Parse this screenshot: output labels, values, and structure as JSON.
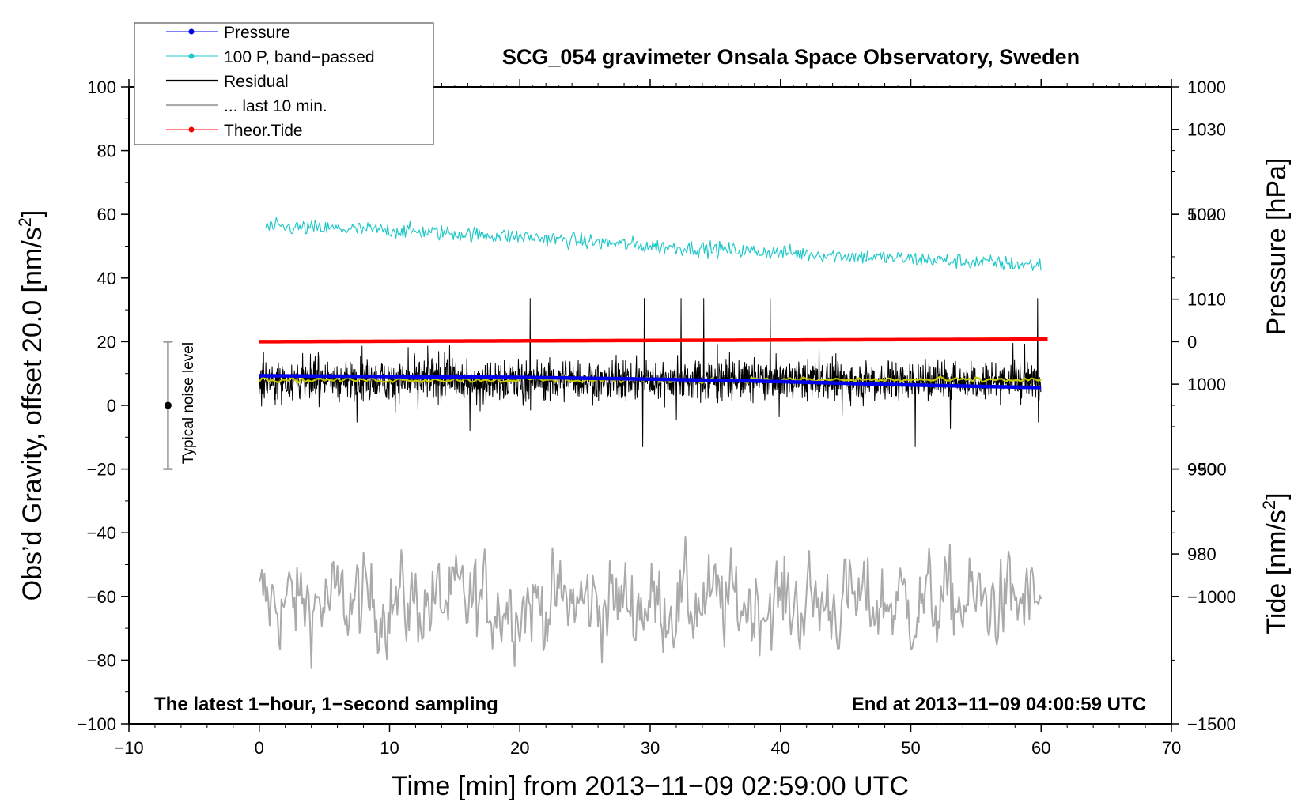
{
  "chart_data": {
    "type": "line",
    "title": "SCG_054 gravimeter Onsala Space Observatory, Sweden",
    "xlabel": "Time [min] from 2013−11−09 02:59:00 UTC",
    "ylabel": "Obs’d Gravity, offset 20.0 [nm/s²]",
    "ylabel_main": "Obs’d Gravity, offset 20.0 [nm/s",
    "ylabel_sup": "2",
    "ylabel_tail": "]",
    "xlim": [
      -10,
      70
    ],
    "ylim": [
      -100,
      100
    ],
    "x_ticks": [
      "−10",
      "0",
      "10",
      "20",
      "30",
      "40",
      "50",
      "60",
      "70"
    ],
    "y_ticks": [
      "−100",
      "−80",
      "−60",
      "−40",
      "−20",
      "0",
      "20",
      "40",
      "60",
      "80",
      "100"
    ],
    "pressure_axis": {
      "label": "Pressure [hPa]",
      "range": [
        960,
        1035
      ],
      "ticks": [
        "980",
        "990",
        "1000",
        "1010",
        "1020",
        "1030"
      ]
    },
    "tide_axis": {
      "label": "Tide [nm/s²]",
      "label_main": "Tide [nm/s",
      "label_sup": "2",
      "label_tail": "]",
      "range": [
        -1500,
        1000
      ],
      "ticks": [
        "−1500",
        "−1000",
        "−500",
        "0",
        "500",
        "1000"
      ]
    },
    "legend": [
      {
        "label": "Pressure",
        "color": "#0000ee",
        "marker": true
      },
      {
        "label": "100 P, band−passed",
        "color": "#22c8c8",
        "marker": true
      },
      {
        "label": "Residual",
        "color": "#000000",
        "marker": false
      },
      {
        "label": "... last 10 min.",
        "color": "#aaaaaa",
        "marker": false
      },
      {
        "label": "Theor.Tide",
        "color": "#ff0000",
        "marker": true
      }
    ],
    "series": [
      {
        "name": "Pressure",
        "axis": "pressure",
        "color": "#0000ee",
        "x": [
          0,
          10,
          20,
          30,
          40,
          50,
          60
        ],
        "values": [
          1001.0,
          1000.9,
          1000.8,
          1000.6,
          1000.3,
          999.9,
          999.6
        ]
      },
      {
        "name": "100 P, band−passed",
        "axis": "gravity",
        "color": "#22c8c8",
        "x": [
          0.5,
          10,
          20,
          30,
          40,
          50,
          60
        ],
        "values": [
          56,
          55,
          53,
          50,
          48,
          46,
          44
        ],
        "noise_amplitude": 2.5
      },
      {
        "name": "Residual",
        "axis": "gravity",
        "color": "#000000",
        "x": [
          0,
          60
        ],
        "values": [
          8,
          8
        ],
        "noise_amplitude": 8,
        "max": 36,
        "min": -13
      },
      {
        "name": "Residual smoothed",
        "axis": "gravity",
        "color": "#c8c800",
        "x": [
          0,
          60
        ],
        "values": [
          8,
          8
        ],
        "noise_amplitude": 0.6
      },
      {
        "name": "... last 10 min.",
        "axis": "gravity",
        "color": "#aaaaaa",
        "x": [
          0,
          60
        ],
        "values": [
          -62,
          -62
        ],
        "noise_amplitude": 10,
        "max": -40,
        "min": -83
      },
      {
        "name": "Theor.Tide",
        "axis": "tide",
        "color": "#ff0000",
        "x": [
          0,
          60.5
        ],
        "values": [
          0,
          10
        ]
      }
    ],
    "noise_bar": {
      "label": "Typical noise level",
      "x": -7,
      "center": 0,
      "low": -20,
      "high": 20
    }
  },
  "notes": {
    "left": "The latest 1−hour, 1−second sampling",
    "right": "End at 2013−11−09 04:00:59 UTC"
  }
}
